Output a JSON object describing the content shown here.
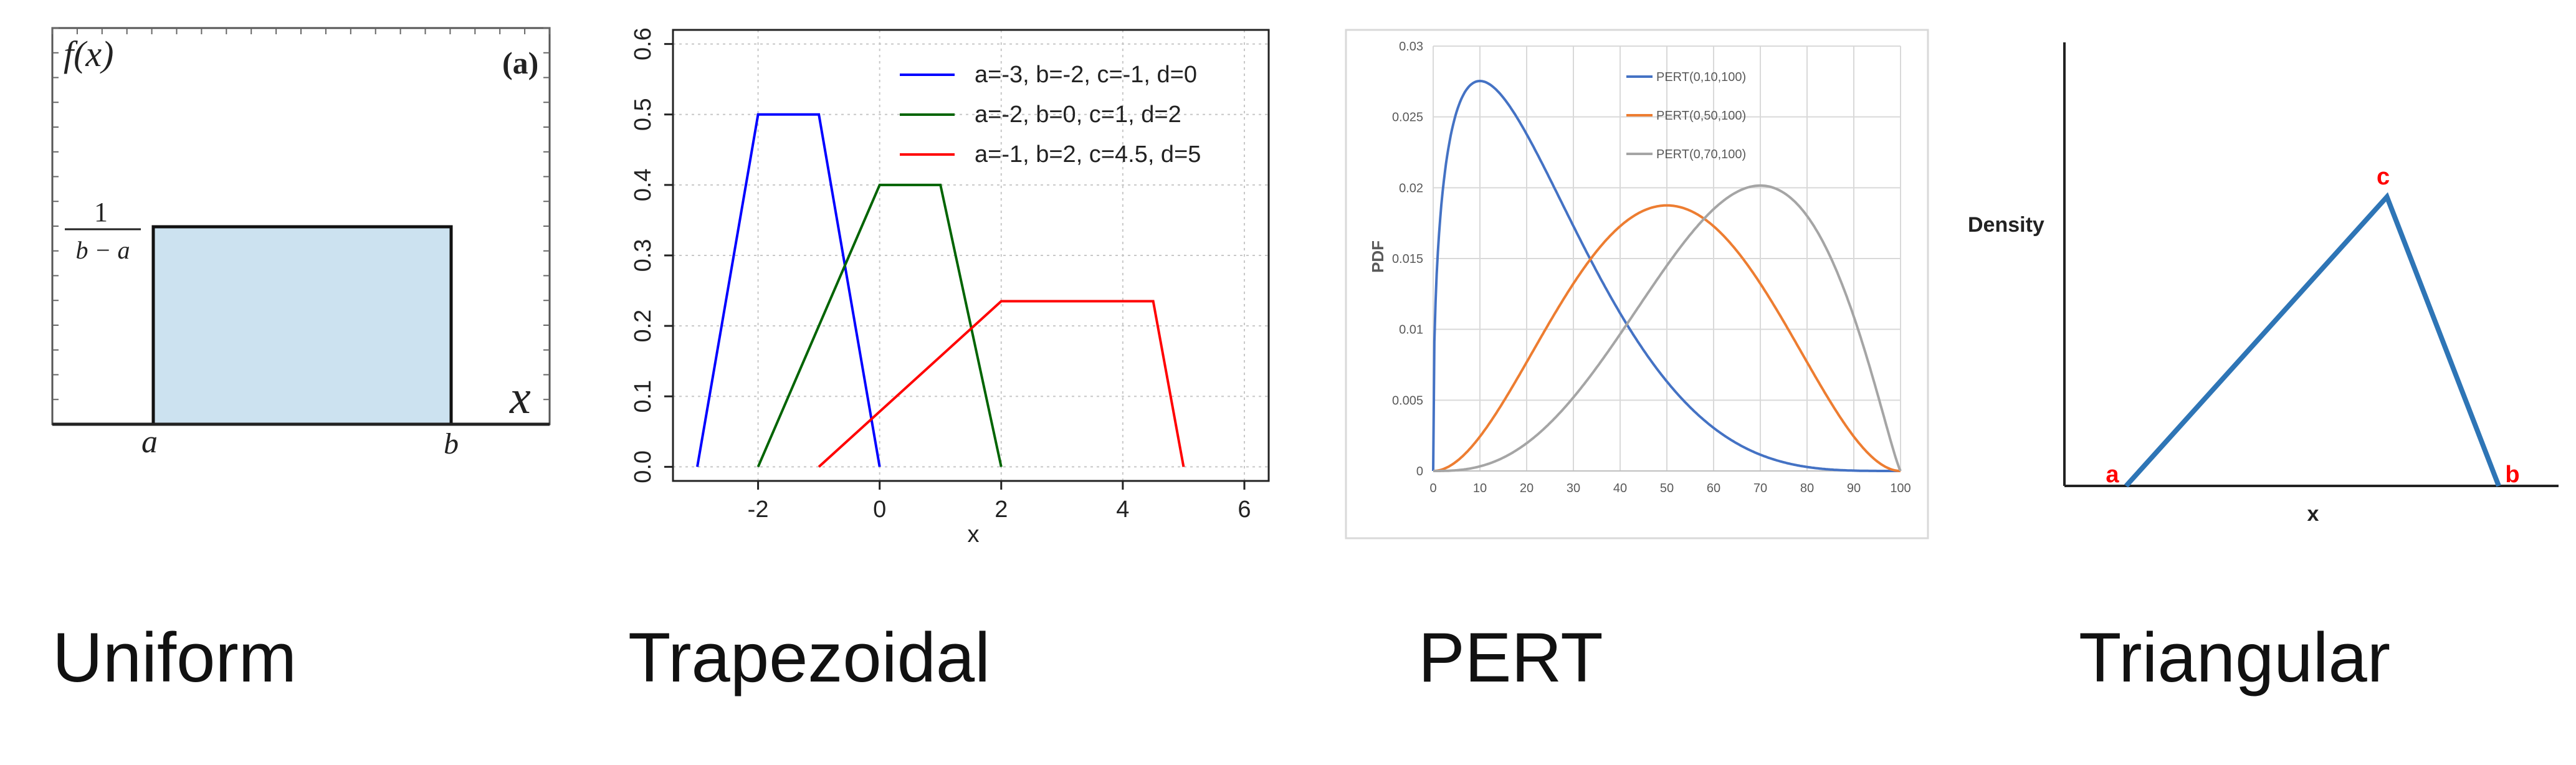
{
  "captions": {
    "uniform": "Uniform",
    "trapezoidal": "Trapezoidal",
    "pert": "PERT",
    "triangular": "Triangular"
  },
  "chart_data": [
    {
      "type": "area",
      "name": "Uniform",
      "title": "",
      "panel_label": "(a)",
      "ylabel": "f(x)",
      "xlabel": "x",
      "height_label_num": "1",
      "height_label_den": "b − a",
      "tick_a": "a",
      "tick_b": "b",
      "support": [
        0,
        1
      ],
      "height": 1,
      "fill_color": "#cce2f0"
    },
    {
      "type": "line",
      "name": "Trapezoidal",
      "xlabel": "x",
      "ylabel": "",
      "xlim": [
        -3.4,
        6.4
      ],
      "ylim": [
        -0.02,
        0.62
      ],
      "xticks": [
        -2,
        0,
        2,
        4,
        6
      ],
      "yticks": [
        0.0,
        0.1,
        0.2,
        0.3,
        0.4,
        0.5,
        0.6
      ],
      "grid": true,
      "legend_position": "top-right",
      "series": [
        {
          "name": "a=-3, b=-2, c=-1, d=0",
          "color": "#0000ff",
          "x": [
            -3,
            -2,
            -1,
            0
          ],
          "y": [
            0,
            0.5,
            0.5,
            0
          ]
        },
        {
          "name": "a=-2, b=0, c=1, d=2",
          "color": "#006400",
          "x": [
            -2,
            0,
            1,
            2
          ],
          "y": [
            0,
            0.4,
            0.4,
            0
          ]
        },
        {
          "name": "a=-1, b=2, c=4.5, d=5",
          "color": "#ff0000",
          "x": [
            -1,
            2,
            4.5,
            5
          ],
          "y": [
            0,
            0.235,
            0.235,
            0
          ]
        }
      ]
    },
    {
      "type": "line",
      "name": "PERT",
      "xlabel": "",
      "ylabel": "PDF",
      "xlim": [
        0,
        100
      ],
      "ylim": [
        0,
        0.03
      ],
      "xticks": [
        0,
        10,
        20,
        30,
        40,
        50,
        60,
        70,
        80,
        90,
        100
      ],
      "yticks": [
        0,
        0.005,
        0.01,
        0.015,
        0.02,
        0.025,
        0.03
      ],
      "ytick_labels": [
        "0",
        "0.005",
        "0.01",
        "0.015",
        "0.02",
        "0.025",
        "0.03"
      ],
      "grid": true,
      "legend_position": "top-right",
      "series": [
        {
          "name": "PERT(0,10,100)",
          "color": "#4472c4",
          "params": [
            0,
            10,
            100
          ],
          "x": [
            0,
            2,
            5,
            10,
            15,
            20,
            30,
            40,
            50,
            60,
            70,
            80,
            90,
            100
          ],
          "y": [
            0,
            0.0162,
            0.0245,
            0.0275,
            0.0264,
            0.0241,
            0.0184,
            0.0126,
            0.0078,
            0.0041,
            0.0017,
            0.0005,
            0.0001,
            0
          ]
        },
        {
          "name": "PERT(0,50,100)",
          "color": "#ed7d31",
          "params": [
            0,
            50,
            100
          ],
          "x": [
            0,
            10,
            20,
            30,
            40,
            50,
            60,
            70,
            80,
            90,
            100
          ],
          "y": [
            0,
            0.0024,
            0.0077,
            0.0132,
            0.0172,
            0.0188,
            0.0172,
            0.0132,
            0.0077,
            0.0024,
            0
          ]
        },
        {
          "name": "PERT(0,70,100)",
          "color": "#a5a5a5",
          "params": [
            0,
            70,
            100
          ],
          "x": [
            0,
            10,
            20,
            30,
            40,
            50,
            60,
            70,
            80,
            90,
            100
          ],
          "y": [
            0,
            0.0003,
            0.0018,
            0.0048,
            0.009,
            0.0139,
            0.018,
            0.02,
            0.0188,
            0.0133,
            0
          ]
        }
      ]
    },
    {
      "type": "line",
      "name": "Triangular",
      "xlabel": "x",
      "ylabel": "Density",
      "point_labels": {
        "a": "a",
        "b": "b",
        "c": "c"
      },
      "label_color": "#ff0000",
      "line_color": "#2e75b6",
      "series": [
        {
          "name": "",
          "x": [
            0,
            0.7,
            1
          ],
          "y": [
            0,
            1,
            0
          ]
        }
      ]
    }
  ]
}
